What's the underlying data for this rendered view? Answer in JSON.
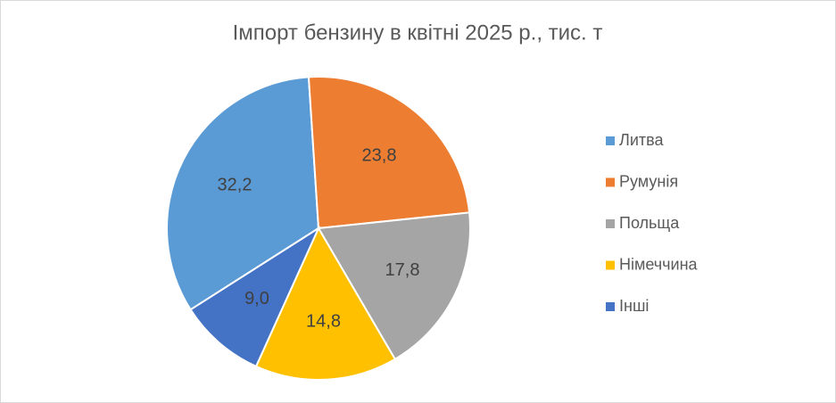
{
  "chart_data": {
    "type": "pie",
    "title": "Імпорт бензину в квітні 2025 р., тис. т",
    "categories": [
      "Литва",
      "Румунія",
      "Польща",
      "Німеччина",
      "Інші"
    ],
    "values": [
      32.2,
      23.8,
      17.8,
      14.8,
      9.0
    ],
    "value_labels": [
      "32,2",
      "23,8",
      "17,8",
      "14,8",
      "9,0"
    ],
    "colors": [
      "#5b9bd5",
      "#ed7d31",
      "#a5a5a5",
      "#ffc000",
      "#4472c4"
    ],
    "legend": "right"
  }
}
